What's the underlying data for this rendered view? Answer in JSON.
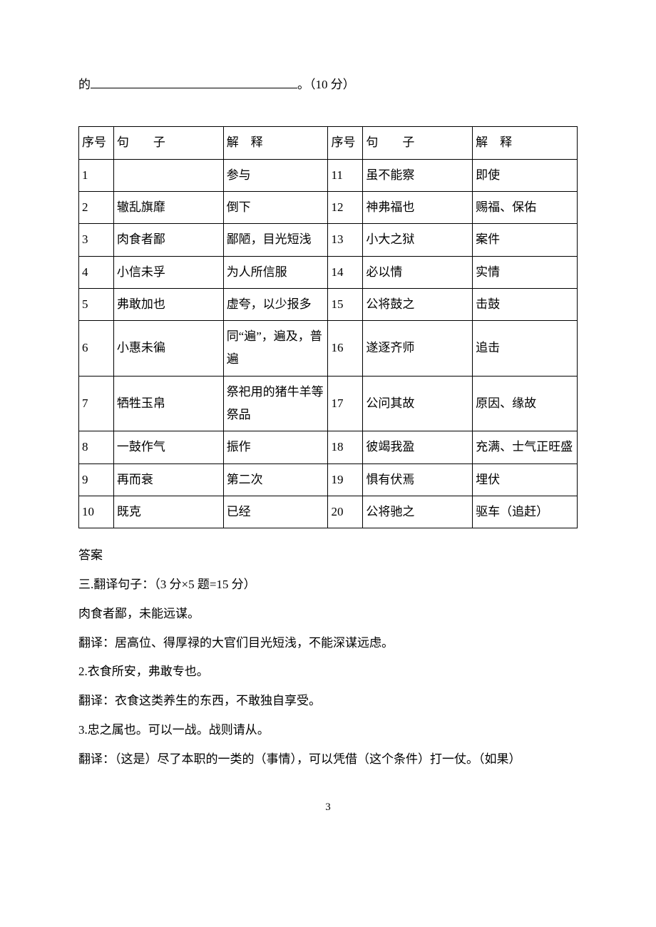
{
  "topLine": {
    "prefix": "的",
    "suffix": "。（10 分）"
  },
  "table": {
    "headers": {
      "seq": "序号",
      "sentence": "句子",
      "explain": "解释",
      "sentenceSpaced": "句　　子",
      "explainSpaced": "解　释"
    },
    "rowsLeft": [
      {
        "n": "1",
        "s": "",
        "e": "参与"
      },
      {
        "n": "2",
        "s": "辙乱旗靡",
        "e": "倒下"
      },
      {
        "n": "3",
        "s": "肉食者鄙",
        "e": "鄙陋，目光短浅"
      },
      {
        "n": "4",
        "s": "小信未孚",
        "e": "为人所信服"
      },
      {
        "n": "5",
        "s": "弗敢加也",
        "e": "虚夸，以少报多"
      },
      {
        "n": "6",
        "s": "小惠未徧",
        "e": "同“遍”，遍及，普遍"
      },
      {
        "n": "7",
        "s": "牺牲玉帛",
        "e": "祭祀用的猪牛羊等祭品"
      },
      {
        "n": "8",
        "s": "一鼓作气",
        "e": "振作"
      },
      {
        "n": "9",
        "s": "再而衰",
        "e": "第二次"
      },
      {
        "n": "10",
        "s": "既克",
        "e": "已经"
      }
    ],
    "rowsRight": [
      {
        "n": "11",
        "s": "虽不能察",
        "e": "即使"
      },
      {
        "n": "12",
        "s": "神弗福也",
        "e": "赐福、保佑"
      },
      {
        "n": "13",
        "s": "小大之狱",
        "e": "案件"
      },
      {
        "n": "14",
        "s": "必以情",
        "e": "实情"
      },
      {
        "n": "15",
        "s": "公将鼓之",
        "e": "击鼓"
      },
      {
        "n": "16",
        "s": "遂逐齐师",
        "e": "追击"
      },
      {
        "n": "17",
        "s": "公问其故",
        "e": "原因、缘故"
      },
      {
        "n": "18",
        "s": "彼竭我盈",
        "e": "充满、士气正旺盛"
      },
      {
        "n": "19",
        "s": "惧有伏焉",
        "e": "埋伏"
      },
      {
        "n": "20",
        "s": "公将驰之",
        "e": "驱车（追赶）"
      }
    ]
  },
  "paras": [
    "答案",
    "三.翻译句子：（3 分×5 题=15 分）",
    "肉食者鄙，未能远谋。",
    "翻译：居高位、得厚禄的大官们目光短浅，不能深谋远虑。",
    "2.衣食所安，弗敢专也。",
    "翻译：衣食这类养生的东西，不敢独自享受。",
    "3.忠之属也。可以一战。战则请从。",
    "翻译：（这是）尽了本职的一类的（事情），可以凭借（这个条件）打一仗。（如果）"
  ],
  "footer": "3"
}
